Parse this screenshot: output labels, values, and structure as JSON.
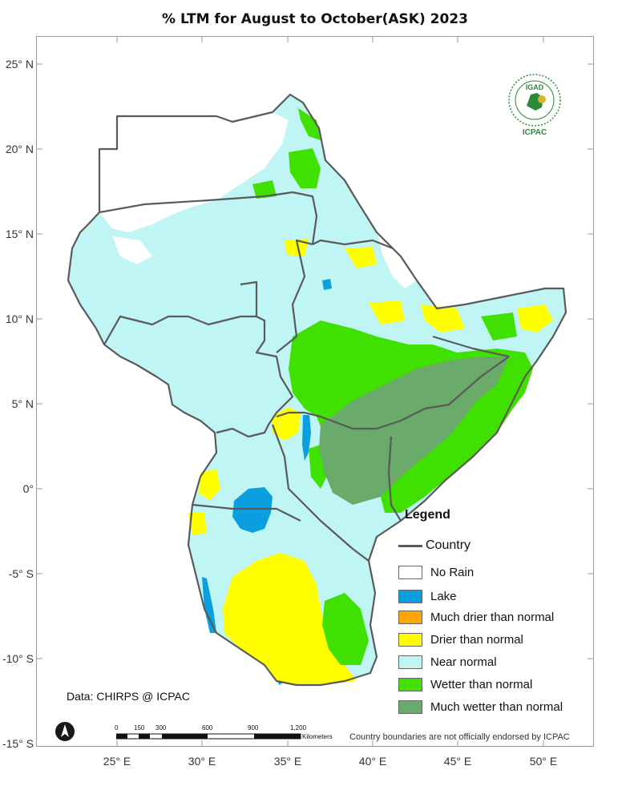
{
  "title": "% LTM  for August to October(ASK) 2023",
  "latitude_labels": [
    "25° N",
    "20° N",
    "15° N",
    "10° N",
    "5° N",
    "0°",
    "-5° S",
    "-10° S",
    "-15° S"
  ],
  "longitude_labels": [
    "25° E",
    "30° E",
    "35° E",
    "40° E",
    "45° E",
    "50° E"
  ],
  "legend": {
    "title": "Legend",
    "country_label": "Country",
    "items": [
      {
        "label": "No Rain",
        "color": "#ffffff"
      },
      {
        "label": "Lake",
        "color": "#0aa0e0"
      },
      {
        "label": "Much drier than normal",
        "color": "#ffa500"
      },
      {
        "label": "Drier than normal",
        "color": "#ffff00"
      },
      {
        "label": "Near normal",
        "color": "#c0f5f5"
      },
      {
        "label": "Wetter than normal",
        "color": "#40e000"
      },
      {
        "label": "Much wetter than normal",
        "color": "#6aaa6a"
      }
    ]
  },
  "credit": "Data: CHIRPS @ ICPAC",
  "disclaimer": "Country boundaries are not officially endorsed by ICPAC",
  "scale_bar": {
    "ticks": [
      "0",
      "150",
      "300",
      "600",
      "900",
      "1,200"
    ],
    "unit": "Kilometers"
  },
  "logo": {
    "top_text": "IGAD",
    "bottom_text": "ICPAC"
  }
}
